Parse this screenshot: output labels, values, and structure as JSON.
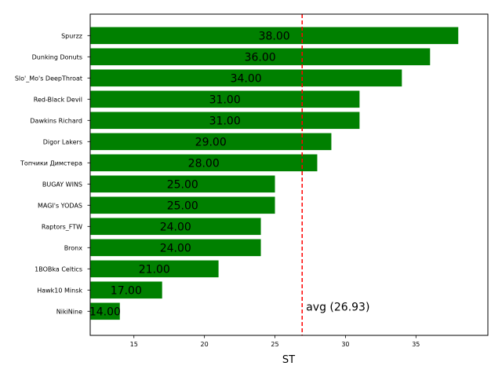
{
  "chart_data": {
    "type": "bar",
    "orientation": "horizontal",
    "categories": [
      "Spurzz",
      "Dunking Donuts",
      "Slo'_Mo's DeepThroat",
      "Red-Black Devil",
      "Dawkins Richard",
      "Digor Lakers",
      "Топчики Димстера",
      "BUGAY WINS",
      "MAGI's YODAS",
      "Raptors_FTW",
      "Bronx",
      "1BOBka Celtics",
      "Hawk10 Minsk",
      "NikiNine"
    ],
    "values": [
      38,
      36,
      34,
      31,
      31,
      29,
      28,
      25,
      25,
      24,
      24,
      21,
      17,
      14
    ],
    "value_labels": [
      "38.00",
      "36.00",
      "34.00",
      "31.00",
      "31.00",
      "29.00",
      "28.00",
      "25.00",
      "25.00",
      "24.00",
      "24.00",
      "21.00",
      "17.00",
      "14.00"
    ],
    "xlabel": "ST",
    "ylabel": "",
    "title": "",
    "xlim": [
      11.9,
      40.1
    ],
    "xticks": [
      15,
      20,
      25,
      30,
      35
    ],
    "xtick_labels": [
      "15",
      "20",
      "25",
      "30",
      "35"
    ],
    "grid": false,
    "bar_color": "#008000",
    "average": {
      "value": 26.93,
      "label": "avg (26.93)",
      "color": "#ff0000"
    }
  }
}
